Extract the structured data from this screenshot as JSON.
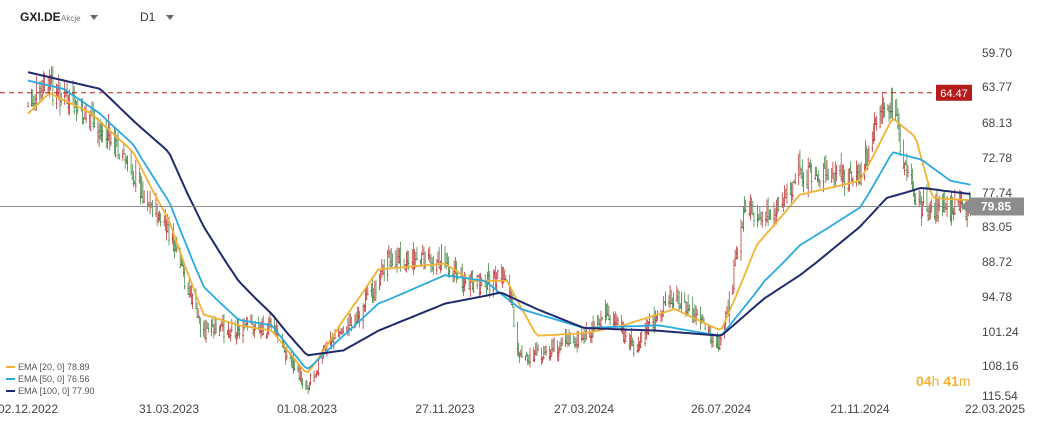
{
  "header": {
    "symbol": "GXI.DE",
    "type": "Akcje",
    "timeframe": "D1"
  },
  "timer": {
    "hours": "04",
    "h": "h",
    "minutes": "41",
    "m": "m"
  },
  "indicators": [
    {
      "label": "EMA [20, 0] 78.89",
      "color": "#f2b233"
    },
    {
      "label": "EMA [50, 0] 76.56",
      "color": "#29aae1"
    },
    {
      "label": "EMA [100, 0] 77.90",
      "color": "#1f2a6e"
    }
  ],
  "chart_data": {
    "type": "candlestick",
    "x_ticks": [
      "02.12.2022",
      "31.03.2023",
      "01.08.2023",
      "27.11.2023",
      "27.03.2024",
      "26.07.2024",
      "21.11.2024",
      "22.03.2025"
    ],
    "y_ticks": [
      115.54,
      108.16,
      101.24,
      94.78,
      88.72,
      83.05,
      77.74,
      72.78,
      68.13,
      63.77,
      59.7
    ],
    "ylim": [
      59.7,
      118.5
    ],
    "last_price": {
      "value": 79.85,
      "label": "79.85"
    },
    "support_level": {
      "value": 64.47,
      "label": "64.47"
    },
    "highlight_range": {
      "from": "16.12.2024",
      "to": "03.02.2025",
      "low": 66.5,
      "high": 82.2
    },
    "close_path": [
      [
        "02.12.2022",
        66.0
      ],
      [
        "20.12.2022",
        63.5
      ],
      [
        "20.01.2023",
        67.5
      ],
      [
        "15.02.2023",
        71.0
      ],
      [
        "31.03.2023",
        84.0
      ],
      [
        "01.05.2023",
        101.0
      ],
      [
        "01.06.2023",
        100.5
      ],
      [
        "01.07.2023",
        100.0
      ],
      [
        "20.07.2023",
        108.0
      ],
      [
        "01.08.2023",
        113.0
      ],
      [
        "20.08.2023",
        103.0
      ],
      [
        "15.09.2023",
        98.0
      ],
      [
        "10.10.2023",
        88.0
      ],
      [
        "27.11.2023",
        88.5
      ],
      [
        "20.12.2023",
        93.0
      ],
      [
        "20.01.2024",
        91.0
      ],
      [
        "01.02.2024",
        107.0
      ],
      [
        "27.03.2024",
        102.0
      ],
      [
        "15.04.2024",
        97.0
      ],
      [
        "10.05.2024",
        104.0
      ],
      [
        "15.06.2024",
        94.0
      ],
      [
        "26.07.2024",
        104.0
      ],
      [
        "01.08.2024",
        97.0
      ],
      [
        "15.08.2024",
        79.0
      ],
      [
        "01.09.2024",
        82.0
      ],
      [
        "01.10.2024",
        75.0
      ],
      [
        "21.11.2024",
        75.5
      ],
      [
        "10.12.2024",
        66.0
      ],
      [
        "20.12.2024",
        66.0
      ],
      [
        "01.01.2025",
        74.0
      ],
      [
        "15.01.2025",
        80.0
      ],
      [
        "03.02.2025",
        80.0
      ],
      [
        "20.02.2025",
        80.0
      ],
      [
        "28.02.2025",
        79.85
      ]
    ],
    "series": [
      {
        "name": "EMA [20, 0] 78.89",
        "color": "#f2b233",
        "points": [
          [
            "02.12.2022",
            67.0
          ],
          [
            "20.12.2022",
            64.5
          ],
          [
            "25.01.2023",
            67.0
          ],
          [
            "01.03.2023",
            72.0
          ],
          [
            "31.03.2023",
            82.0
          ],
          [
            "01.05.2023",
            98.0
          ],
          [
            "01.06.2023",
            100.0
          ],
          [
            "01.07.2023",
            101.0
          ],
          [
            "01.08.2023",
            110.0
          ],
          [
            "01.09.2023",
            99.0
          ],
          [
            "01.10.2023",
            90.0
          ],
          [
            "27.11.2023",
            89.0
          ],
          [
            "20.12.2023",
            92.0
          ],
          [
            "20.01.2024",
            92.0
          ],
          [
            "15.02.2024",
            102.0
          ],
          [
            "27.03.2024",
            101.5
          ],
          [
            "01.05.2024",
            100.0
          ],
          [
            "15.06.2024",
            97.0
          ],
          [
            "26.07.2024",
            101.0
          ],
          [
            "25.08.2024",
            86.0
          ],
          [
            "01.10.2024",
            78.0
          ],
          [
            "21.11.2024",
            76.0
          ],
          [
            "20.12.2024",
            67.5
          ],
          [
            "10.01.2025",
            70.0
          ],
          [
            "25.01.2025",
            78.5
          ],
          [
            "28.02.2025",
            78.89
          ]
        ]
      },
      {
        "name": "EMA [50, 0] 76.56",
        "color": "#29aae1",
        "points": [
          [
            "02.12.2022",
            63.0
          ],
          [
            "01.01.2023",
            64.0
          ],
          [
            "01.02.2023",
            67.0
          ],
          [
            "01.03.2023",
            71.0
          ],
          [
            "31.03.2023",
            79.0
          ],
          [
            "01.05.2023",
            93.0
          ],
          [
            "01.06.2023",
            99.0
          ],
          [
            "01.07.2023",
            100.0
          ],
          [
            "01.08.2023",
            109.0
          ],
          [
            "01.09.2023",
            102.0
          ],
          [
            "01.10.2023",
            96.0
          ],
          [
            "27.11.2023",
            91.0
          ],
          [
            "01.01.2024",
            92.0
          ],
          [
            "01.02.2024",
            97.0
          ],
          [
            "27.03.2024",
            100.5
          ],
          [
            "01.06.2024",
            100.0
          ],
          [
            "26.07.2024",
            102.0
          ],
          [
            "01.09.2024",
            92.0
          ],
          [
            "01.10.2024",
            86.0
          ],
          [
            "21.11.2024",
            80.0
          ],
          [
            "20.12.2024",
            72.0
          ],
          [
            "15.01.2025",
            73.0
          ],
          [
            "10.02.2025",
            76.0
          ],
          [
            "28.02.2025",
            76.56
          ]
        ]
      },
      {
        "name": "EMA [100, 0] 77.90",
        "color": "#1f2a6e",
        "points": [
          [
            "02.12.2022",
            62.0
          ],
          [
            "01.02.2023",
            64.0
          ],
          [
            "31.03.2023",
            72.0
          ],
          [
            "01.05.2023",
            83.0
          ],
          [
            "01.06.2023",
            92.0
          ],
          [
            "01.07.2023",
            98.0
          ],
          [
            "01.08.2023",
            106.0
          ],
          [
            "01.09.2023",
            105.0
          ],
          [
            "01.10.2023",
            101.0
          ],
          [
            "27.11.2023",
            96.0
          ],
          [
            "15.01.2024",
            94.0
          ],
          [
            "15.02.2024",
            97.0
          ],
          [
            "27.03.2024",
            100.5
          ],
          [
            "01.06.2024",
            101.0
          ],
          [
            "26.07.2024",
            102.0
          ],
          [
            "01.09.2024",
            95.0
          ],
          [
            "01.10.2024",
            91.0
          ],
          [
            "21.11.2024",
            83.0
          ],
          [
            "15.12.2024",
            78.5
          ],
          [
            "15.01.2025",
            77.0
          ],
          [
            "28.02.2025",
            77.9
          ]
        ]
      }
    ]
  }
}
